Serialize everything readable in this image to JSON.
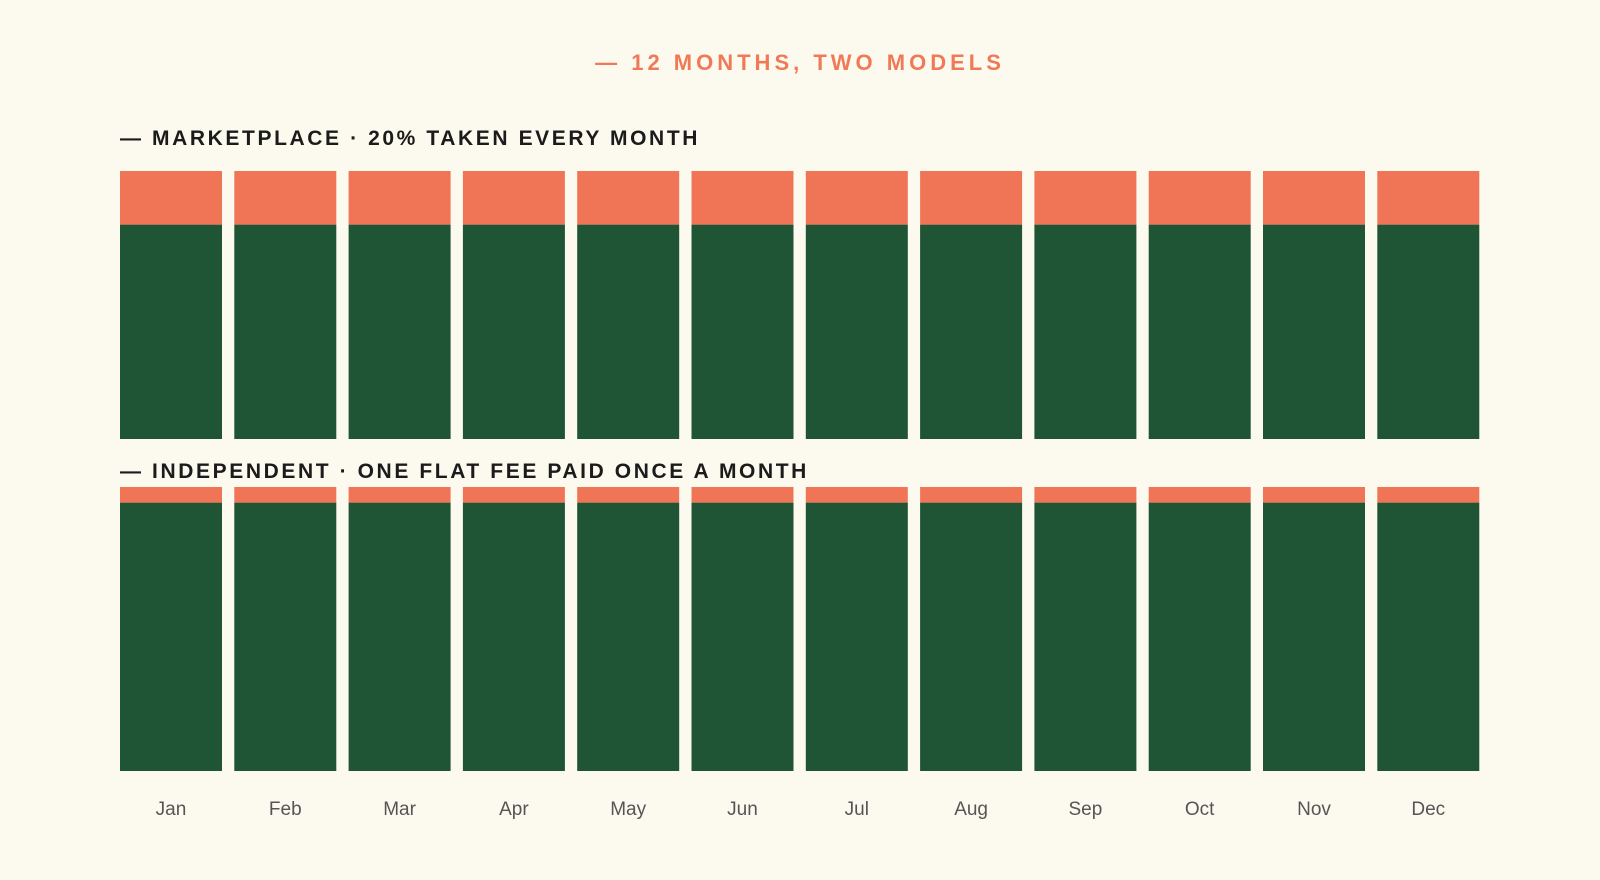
{
  "kicker": "— 12 MONTHS, TWO MODELS",
  "colors": {
    "background": "#fcfaee",
    "fee": "#f07556",
    "kept": "#1f5435",
    "accent_text": "#f07a57"
  },
  "chart_data": [
    {
      "type": "bar",
      "stacked": true,
      "title": "— MARKETPLACE · 20% TAKEN EVERY MONTH",
      "categories": [
        "Jan",
        "Feb",
        "Mar",
        "Apr",
        "May",
        "Jun",
        "Jul",
        "Aug",
        "Sep",
        "Oct",
        "Nov",
        "Dec"
      ],
      "series": [
        {
          "values": [
            80,
            80,
            80,
            80,
            80,
            80,
            80,
            80,
            80,
            80,
            80,
            80
          ]
        },
        {
          "values": [
            20,
            20,
            20,
            20,
            20,
            20,
            20,
            20,
            20,
            20,
            20,
            20
          ]
        }
      ],
      "ylim": [
        0,
        100
      ]
    },
    {
      "type": "bar",
      "stacked": true,
      "title": "— INDEPENDENT · ONE FLAT FEE PAID ONCE A MONTH",
      "categories": [
        "Jan",
        "Feb",
        "Mar",
        "Apr",
        "May",
        "Jun",
        "Jul",
        "Aug",
        "Sep",
        "Oct",
        "Nov",
        "Dec"
      ],
      "series": [
        {
          "values": [
            94.5,
            94.5,
            94.5,
            94.5,
            94.5,
            94.5,
            94.5,
            94.5,
            94.5,
            94.5,
            94.5,
            94.5
          ]
        },
        {
          "values": [
            5.5,
            5.5,
            5.5,
            5.5,
            5.5,
            5.5,
            5.5,
            5.5,
            5.5,
            5.5,
            5.5,
            5.5
          ]
        }
      ],
      "ylim": [
        0,
        100
      ]
    }
  ]
}
